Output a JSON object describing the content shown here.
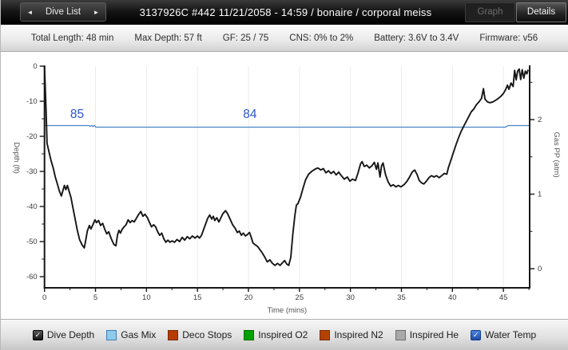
{
  "header": {
    "nav": {
      "prev_label": "◄",
      "list_label": "Dive List",
      "next_label": "►"
    },
    "title": "3137926C #442 11/21/2058 - 14:59  / bonaire / corporal meiss",
    "graph_label": "Graph",
    "details_label": "Details"
  },
  "info_bar": {
    "items": [
      "Total Length: 48 min",
      "Max Depth: 57 ft",
      "GF: 25 / 75",
      "CNS: 0% to 2%",
      "Battery: 3.6V to 3.4V",
      "Firmware: v56"
    ]
  },
  "legend": {
    "items": [
      {
        "label": "Dive Depth",
        "type": "checkbox",
        "checked": true,
        "color": "#1a1a1a"
      },
      {
        "label": "Gas Mix",
        "type": "swatch",
        "color": "#8fcbea",
        "border": "#3f7fb8"
      },
      {
        "label": "Deco Stops",
        "type": "swatch",
        "color": "#b63c00",
        "border": "#7c2900"
      },
      {
        "label": "Inspired O2",
        "type": "swatch",
        "color": "#00a100",
        "border": "#007000"
      },
      {
        "label": "Inspired N2",
        "type": "swatch",
        "color": "#b34200",
        "border": "#7c2d00"
      },
      {
        "label": "Inspired He",
        "type": "swatch",
        "color": "#a9a9a9",
        "border": "#6d6d6d"
      },
      {
        "label": "Water Temp",
        "type": "checkbox",
        "checked": true,
        "color": "#2a5fc4"
      }
    ]
  },
  "chart_data": {
    "type": "line",
    "xlabel": "Time (mins)",
    "ylabel_left": "Depth (ft)",
    "ylabel_right": "Gas PP (atm)",
    "xlim": [
      0,
      47.6
    ],
    "ylim_left": [
      -63,
      0
    ],
    "ylim_right": [
      0,
      2.95
    ],
    "x_ticks": [
      0,
      5,
      10,
      15,
      20,
      25,
      30,
      35,
      40,
      45
    ],
    "y_left_ticks": [
      0,
      -10,
      -20,
      -30,
      -40,
      -50,
      -60
    ],
    "y_right_ticks": [
      0,
      1,
      2
    ],
    "grid": "vertical gridlines at 5-min ticks",
    "legend_position": "bottom bar",
    "series": [
      {
        "name": "Dive Depth",
        "axis": "left",
        "unit": "ft",
        "color": "#161616",
        "points": [
          [
            0,
            0
          ],
          [
            0.15,
            -12
          ],
          [
            0.25,
            -22
          ],
          [
            0.45,
            -24.5
          ],
          [
            0.65,
            -27
          ],
          [
            0.85,
            -29
          ],
          [
            1.05,
            -31.5
          ],
          [
            1.25,
            -33.5
          ],
          [
            1.45,
            -35.5
          ],
          [
            1.65,
            -37
          ],
          [
            1.8,
            -35.5
          ],
          [
            1.95,
            -34
          ],
          [
            2.1,
            -35.2
          ],
          [
            2.25,
            -34
          ],
          [
            2.4,
            -35.5
          ],
          [
            2.6,
            -37.5
          ],
          [
            2.8,
            -40.5
          ],
          [
            3.0,
            -43.5
          ],
          [
            3.2,
            -46.5
          ],
          [
            3.45,
            -49.5
          ],
          [
            3.7,
            -51
          ],
          [
            3.9,
            -51.8
          ],
          [
            4.05,
            -49.5
          ],
          [
            4.2,
            -47
          ],
          [
            4.4,
            -45.4
          ],
          [
            4.55,
            -46.4
          ],
          [
            4.75,
            -45.2
          ],
          [
            4.95,
            -43.8
          ],
          [
            5.1,
            -44.6
          ],
          [
            5.3,
            -44
          ],
          [
            5.5,
            -45.4
          ],
          [
            5.7,
            -44.8
          ],
          [
            5.9,
            -46.4
          ],
          [
            6.1,
            -47.8
          ],
          [
            6.3,
            -47.2
          ],
          [
            6.55,
            -49.2
          ],
          [
            6.8,
            -50.8
          ],
          [
            7.0,
            -51.2
          ],
          [
            7.15,
            -48.2
          ],
          [
            7.3,
            -46.8
          ],
          [
            7.45,
            -47.6
          ],
          [
            7.6,
            -46.6
          ],
          [
            7.8,
            -45.8
          ],
          [
            8.0,
            -45.2
          ],
          [
            8.2,
            -43.8
          ],
          [
            8.4,
            -44.6
          ],
          [
            8.6,
            -44
          ],
          [
            8.8,
            -44.4
          ],
          [
            9.0,
            -43.4
          ],
          [
            9.2,
            -42.4
          ],
          [
            9.45,
            -41.4
          ],
          [
            9.65,
            -42.8
          ],
          [
            9.85,
            -42.2
          ],
          [
            10.1,
            -43.2
          ],
          [
            10.3,
            -44.6
          ],
          [
            10.5,
            -45.8
          ],
          [
            10.7,
            -45.2
          ],
          [
            10.9,
            -45.8
          ],
          [
            11.1,
            -47.2
          ],
          [
            11.3,
            -48.2
          ],
          [
            11.5,
            -47.6
          ],
          [
            11.7,
            -49.2
          ],
          [
            11.9,
            -50.2
          ],
          [
            12.1,
            -49.6
          ],
          [
            12.3,
            -50.2
          ],
          [
            12.5,
            -49.8
          ],
          [
            12.75,
            -50.2
          ],
          [
            13.0,
            -49.4
          ],
          [
            13.25,
            -50
          ],
          [
            13.5,
            -48.8
          ],
          [
            13.75,
            -49.6
          ],
          [
            14.0,
            -48.6
          ],
          [
            14.25,
            -49.2
          ],
          [
            14.5,
            -48.4
          ],
          [
            14.75,
            -49
          ],
          [
            15.0,
            -48.4
          ],
          [
            15.2,
            -49
          ],
          [
            15.4,
            -48.2
          ],
          [
            15.6,
            -46.6
          ],
          [
            15.8,
            -45
          ],
          [
            16.0,
            -43.4
          ],
          [
            16.2,
            -42.4
          ],
          [
            16.4,
            -43.6
          ],
          [
            16.55,
            -42.8
          ],
          [
            16.7,
            -44
          ],
          [
            16.9,
            -43.2
          ],
          [
            17.1,
            -44.4
          ],
          [
            17.3,
            -43.2
          ],
          [
            17.5,
            -42
          ],
          [
            17.75,
            -41.2
          ],
          [
            17.95,
            -42
          ],
          [
            18.2,
            -43.6
          ],
          [
            18.45,
            -45.2
          ],
          [
            18.7,
            -46.2
          ],
          [
            18.9,
            -47.4
          ],
          [
            19.1,
            -47
          ],
          [
            19.3,
            -48.2
          ],
          [
            19.5,
            -47.6
          ],
          [
            19.7,
            -48.4
          ],
          [
            19.9,
            -48
          ],
          [
            20.1,
            -47.4
          ],
          [
            20.25,
            -48.6
          ],
          [
            20.45,
            -50.4
          ],
          [
            20.7,
            -51
          ],
          [
            20.9,
            -51.4
          ],
          [
            21.1,
            -52.2
          ],
          [
            21.35,
            -53.2
          ],
          [
            21.6,
            -54.4
          ],
          [
            21.85,
            -55.8
          ],
          [
            22.1,
            -55.2
          ],
          [
            22.35,
            -56.2
          ],
          [
            22.6,
            -56.8
          ],
          [
            22.85,
            -56.2
          ],
          [
            23.1,
            -56.8
          ],
          [
            23.35,
            -56
          ],
          [
            23.55,
            -55.4
          ],
          [
            23.75,
            -56.4
          ],
          [
            23.95,
            -56.8
          ],
          [
            24.15,
            -54.5
          ],
          [
            24.35,
            -48
          ],
          [
            24.55,
            -42.6
          ],
          [
            24.7,
            -39.6
          ],
          [
            24.85,
            -39.2
          ],
          [
            25.1,
            -37.4
          ],
          [
            25.35,
            -34.8
          ],
          [
            25.6,
            -32.4
          ],
          [
            25.9,
            -30.8
          ],
          [
            26.2,
            -30
          ],
          [
            26.5,
            -29.4
          ],
          [
            26.8,
            -29
          ],
          [
            27.1,
            -29.6
          ],
          [
            27.35,
            -29.2
          ],
          [
            27.6,
            -30.4
          ],
          [
            27.85,
            -29.8
          ],
          [
            28.1,
            -30.6
          ],
          [
            28.35,
            -30
          ],
          [
            28.6,
            -31
          ],
          [
            28.85,
            -30.2
          ],
          [
            29.1,
            -31.2
          ],
          [
            29.4,
            -32.2
          ],
          [
            29.7,
            -31.6
          ],
          [
            29.95,
            -32.8
          ],
          [
            30.2,
            -32.2
          ],
          [
            30.5,
            -32.6
          ],
          [
            30.75,
            -30.4
          ],
          [
            31.0,
            -27.8
          ],
          [
            31.15,
            -27.2
          ],
          [
            31.35,
            -28.6
          ],
          [
            31.6,
            -28.2
          ],
          [
            31.85,
            -29
          ],
          [
            32.1,
            -28.4
          ],
          [
            32.35,
            -27.4
          ],
          [
            32.55,
            -29.4
          ],
          [
            32.7,
            -27.6
          ],
          [
            32.9,
            -31.6
          ],
          [
            33.05,
            -28.4
          ],
          [
            33.2,
            -27.6
          ],
          [
            33.45,
            -31
          ],
          [
            33.7,
            -33
          ],
          [
            33.95,
            -34.2
          ],
          [
            34.2,
            -33.8
          ],
          [
            34.45,
            -34.4
          ],
          [
            34.7,
            -34
          ],
          [
            34.95,
            -34.4
          ],
          [
            35.25,
            -33.8
          ],
          [
            35.55,
            -32.8
          ],
          [
            35.8,
            -31.6
          ],
          [
            36.05,
            -30.2
          ],
          [
            36.3,
            -29.6
          ],
          [
            36.55,
            -31
          ],
          [
            36.75,
            -32.6
          ],
          [
            36.95,
            -33.2
          ],
          [
            37.2,
            -33.6
          ],
          [
            37.45,
            -32.8
          ],
          [
            37.7,
            -31.8
          ],
          [
            37.95,
            -31.2
          ],
          [
            38.2,
            -31.6
          ],
          [
            38.45,
            -31.2
          ],
          [
            38.7,
            -31.8
          ],
          [
            38.95,
            -31.2
          ],
          [
            39.2,
            -30.6
          ],
          [
            39.45,
            -30.8
          ],
          [
            39.6,
            -29
          ],
          [
            39.85,
            -26.8
          ],
          [
            40.1,
            -24.6
          ],
          [
            40.35,
            -22.4
          ],
          [
            40.6,
            -20.4
          ],
          [
            40.85,
            -18.6
          ],
          [
            41.1,
            -17.2
          ],
          [
            41.35,
            -15.8
          ],
          [
            41.6,
            -14.4
          ],
          [
            41.85,
            -13
          ],
          [
            42.1,
            -12.2
          ],
          [
            42.35,
            -11
          ],
          [
            42.6,
            -10.2
          ],
          [
            42.85,
            -9.2
          ],
          [
            43.05,
            -6.4
          ],
          [
            43.2,
            -9.4
          ],
          [
            43.45,
            -10.2
          ],
          [
            43.7,
            -10.4
          ],
          [
            43.95,
            -10.2
          ],
          [
            44.2,
            -9.8
          ],
          [
            44.5,
            -9.2
          ],
          [
            44.75,
            -8.6
          ],
          [
            45.0,
            -7.8
          ],
          [
            45.2,
            -6.8
          ],
          [
            45.4,
            -5.4
          ],
          [
            45.55,
            -6.6
          ],
          [
            45.75,
            -4.8
          ],
          [
            45.95,
            -5.8
          ],
          [
            46.1,
            -1.2
          ],
          [
            46.25,
            -3.9
          ],
          [
            46.4,
            -1.4
          ],
          [
            46.55,
            -0.8
          ],
          [
            46.7,
            -3.8
          ],
          [
            46.85,
            -1.0
          ],
          [
            47.0,
            -3.4
          ],
          [
            47.15,
            -1.4
          ],
          [
            47.3,
            -2.2
          ],
          [
            47.4,
            -1.2
          ]
        ]
      },
      {
        "name": "Water Temp",
        "axis": "temp",
        "unit": "°F",
        "color": "#4a86c8",
        "points": [
          [
            0,
            85
          ],
          [
            4.35,
            85
          ],
          [
            4.5,
            84.5
          ],
          [
            4.62,
            85.1
          ],
          [
            4.75,
            84.4
          ],
          [
            4.9,
            85
          ],
          [
            5.05,
            84
          ],
          [
            45.2,
            84
          ],
          [
            45.45,
            85
          ],
          [
            47.6,
            85
          ]
        ],
        "labels": [
          {
            "text": "85",
            "t": 3.2
          },
          {
            "text": "84",
            "t": 20.15
          }
        ]
      }
    ]
  }
}
